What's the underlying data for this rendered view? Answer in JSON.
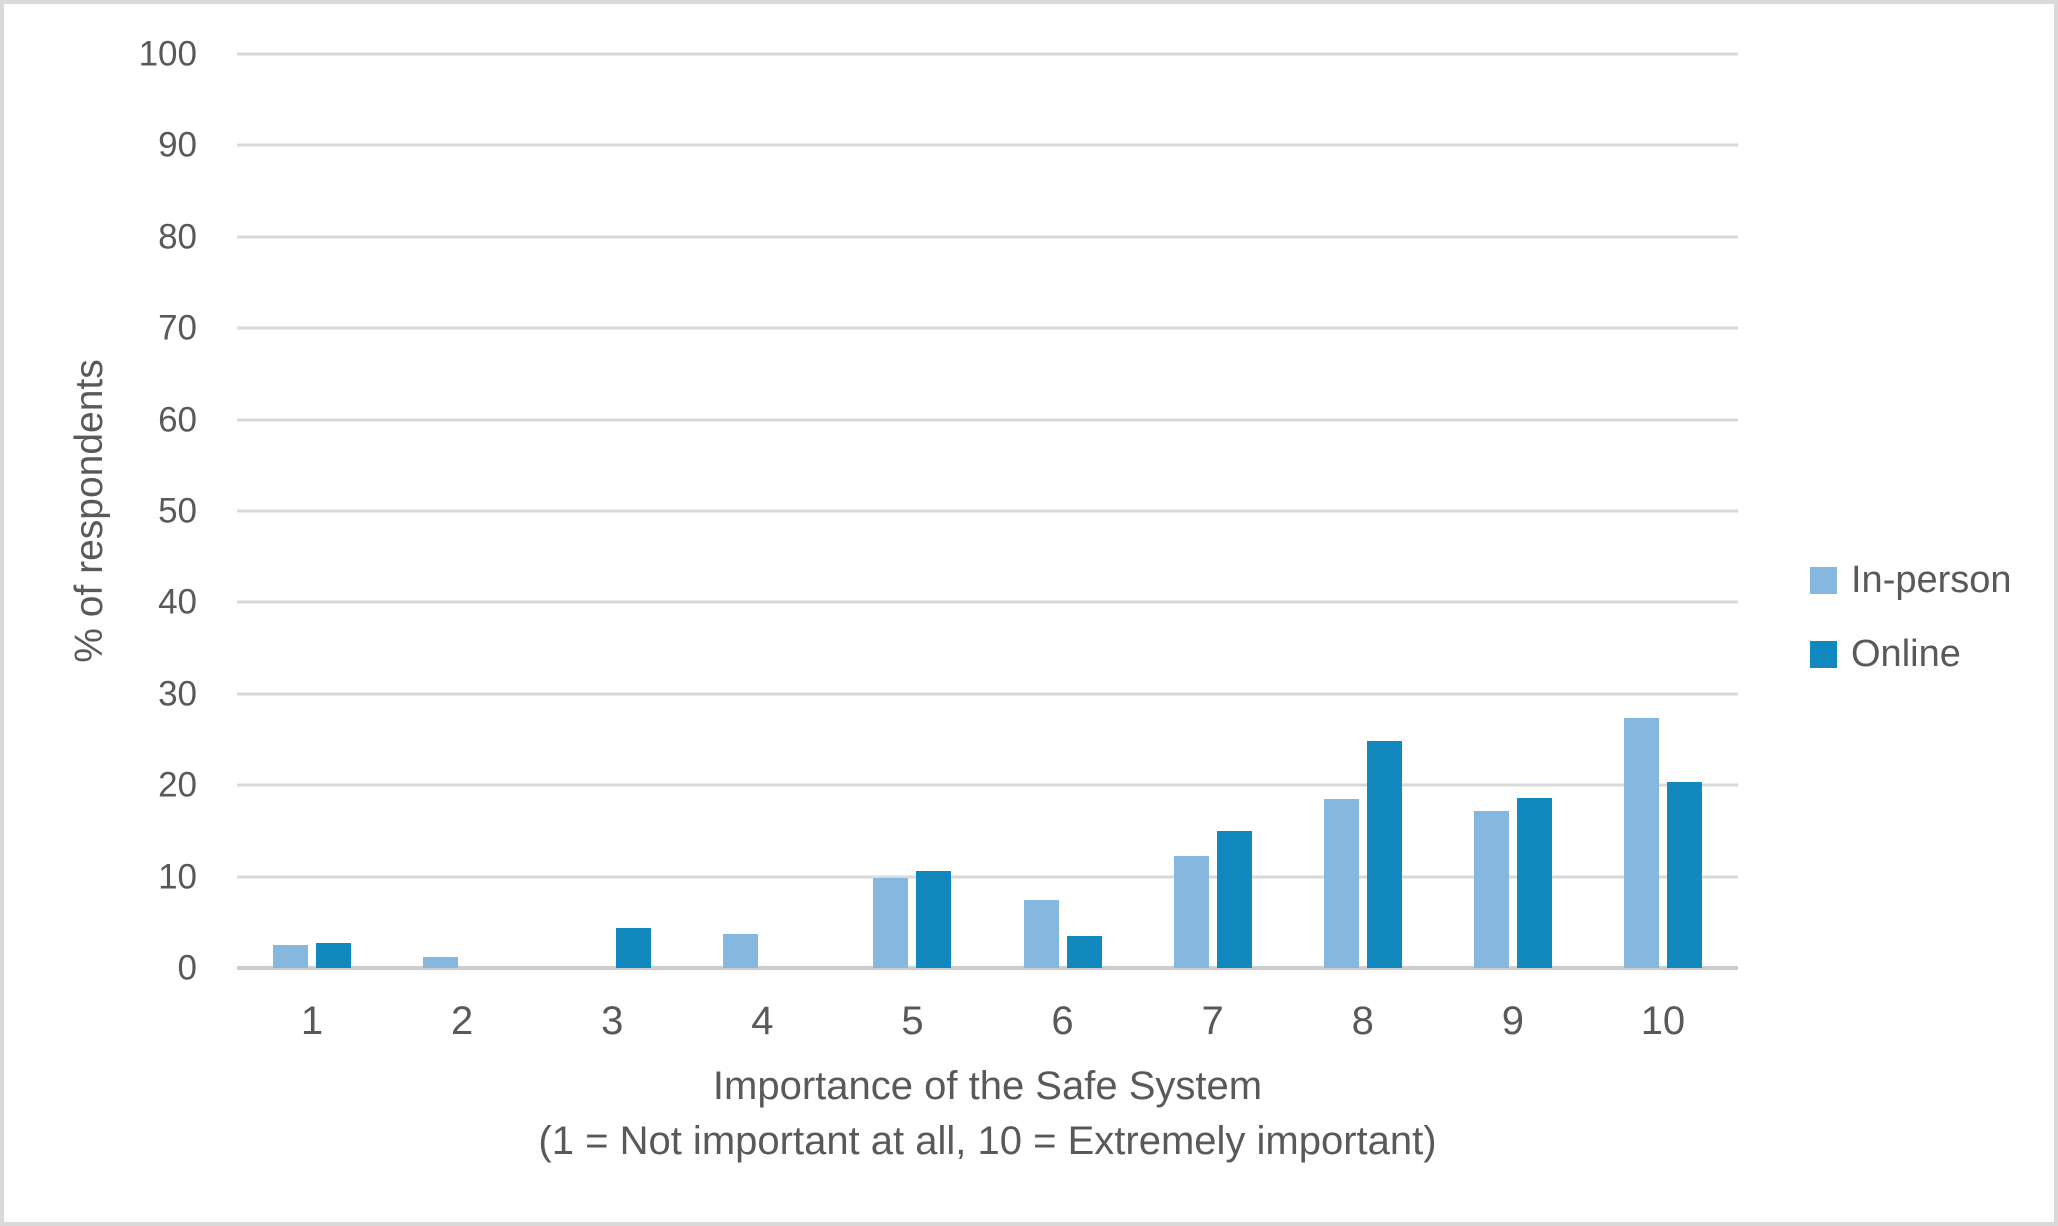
{
  "figure": {
    "background": "#ffffff",
    "border_color": "#d9d9d9",
    "text_color": "#595959",
    "gridline_color": "#d9d9d9",
    "axis_line_color": "#cdcdcd"
  },
  "chart_data": {
    "type": "bar",
    "categories": [
      "1",
      "2",
      "3",
      "4",
      "5",
      "6",
      "7",
      "8",
      "9",
      "10"
    ],
    "series": [
      {
        "name": "In-person",
        "slug": "in-person",
        "color": "#85B7DF",
        "values": [
          2.5,
          1.2,
          0,
          3.7,
          9.9,
          7.4,
          12.3,
          18.5,
          17.2,
          27.3
        ]
      },
      {
        "name": "Online",
        "slug": "online",
        "color": "#1189BE",
        "values": [
          2.7,
          0,
          4.4,
          0,
          10.6,
          3.5,
          15.0,
          24.8,
          18.6,
          20.4
        ]
      }
    ],
    "xlabel_lines": [
      "Importance of the Safe System",
      "(1 = Not important at all, 10 = Extremely important)"
    ],
    "ylabel": "% of respondents",
    "ylim": [
      0,
      100
    ],
    "yticks": [
      0,
      10,
      20,
      30,
      40,
      50,
      60,
      70,
      80,
      90,
      100
    ],
    "grid": "horizontal",
    "legend_position": "right"
  }
}
